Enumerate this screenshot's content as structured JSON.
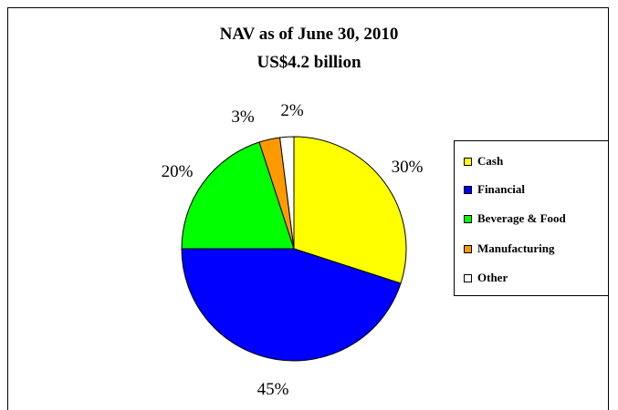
{
  "chart_data": {
    "type": "pie",
    "title": "NAV as of June 30, 2010",
    "subtitle": "US$4.2 billion",
    "categories": [
      "Cash",
      "Financial",
      "Beverage & Food",
      "Manufacturing",
      "Other"
    ],
    "values": [
      30,
      45,
      20,
      3,
      2
    ],
    "labels": [
      "30%",
      "45%",
      "20%",
      "3%",
      "2%"
    ],
    "colors": [
      "#FFFF00",
      "#0000FF",
      "#00FF00",
      "#FF9900",
      "#FFFFFF"
    ],
    "legend_position": "right",
    "legend": [
      "Cash",
      "Financial",
      "Beverage & Food",
      "Manufacturing",
      "Other"
    ]
  }
}
